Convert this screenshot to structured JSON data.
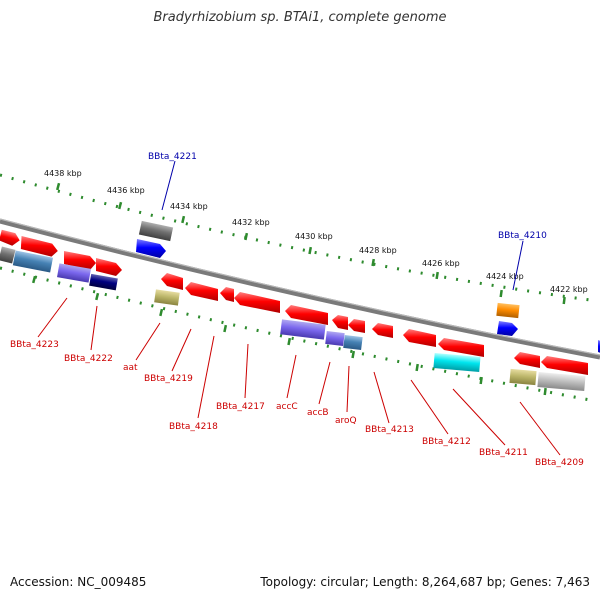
{
  "title": "Bradyrhizobium sp. BTAi1, complete genome",
  "footer": {
    "accession": "Accession: NC_009485",
    "topology": "Topology: circular; Length: 8,264,687 bp; Genes: 7,463"
  },
  "colors": {
    "backbone": "#7a7a7a",
    "tick": "#2e8b2e",
    "label_plus": "#0000aa",
    "label_minus": "#cc0000"
  },
  "kbp_ticks": [
    "4438 kbp",
    "4436 kbp",
    "4434 kbp",
    "4432 kbp",
    "4430 kbp",
    "4428 kbp",
    "4426 kbp",
    "4424 kbp",
    "4422 kbp"
  ],
  "plus_labels": [
    "BBta_4221",
    "BBta_4210"
  ],
  "minus_labels": [
    "BBta_4223",
    "BBta_4222",
    "aat",
    "BBta_4219",
    "BBta_4218",
    "BBta_4217",
    "accC",
    "accB",
    "aroQ",
    "BBta_4213",
    "BBta_4212",
    "BBta_4211",
    "BBta_4209"
  ]
}
